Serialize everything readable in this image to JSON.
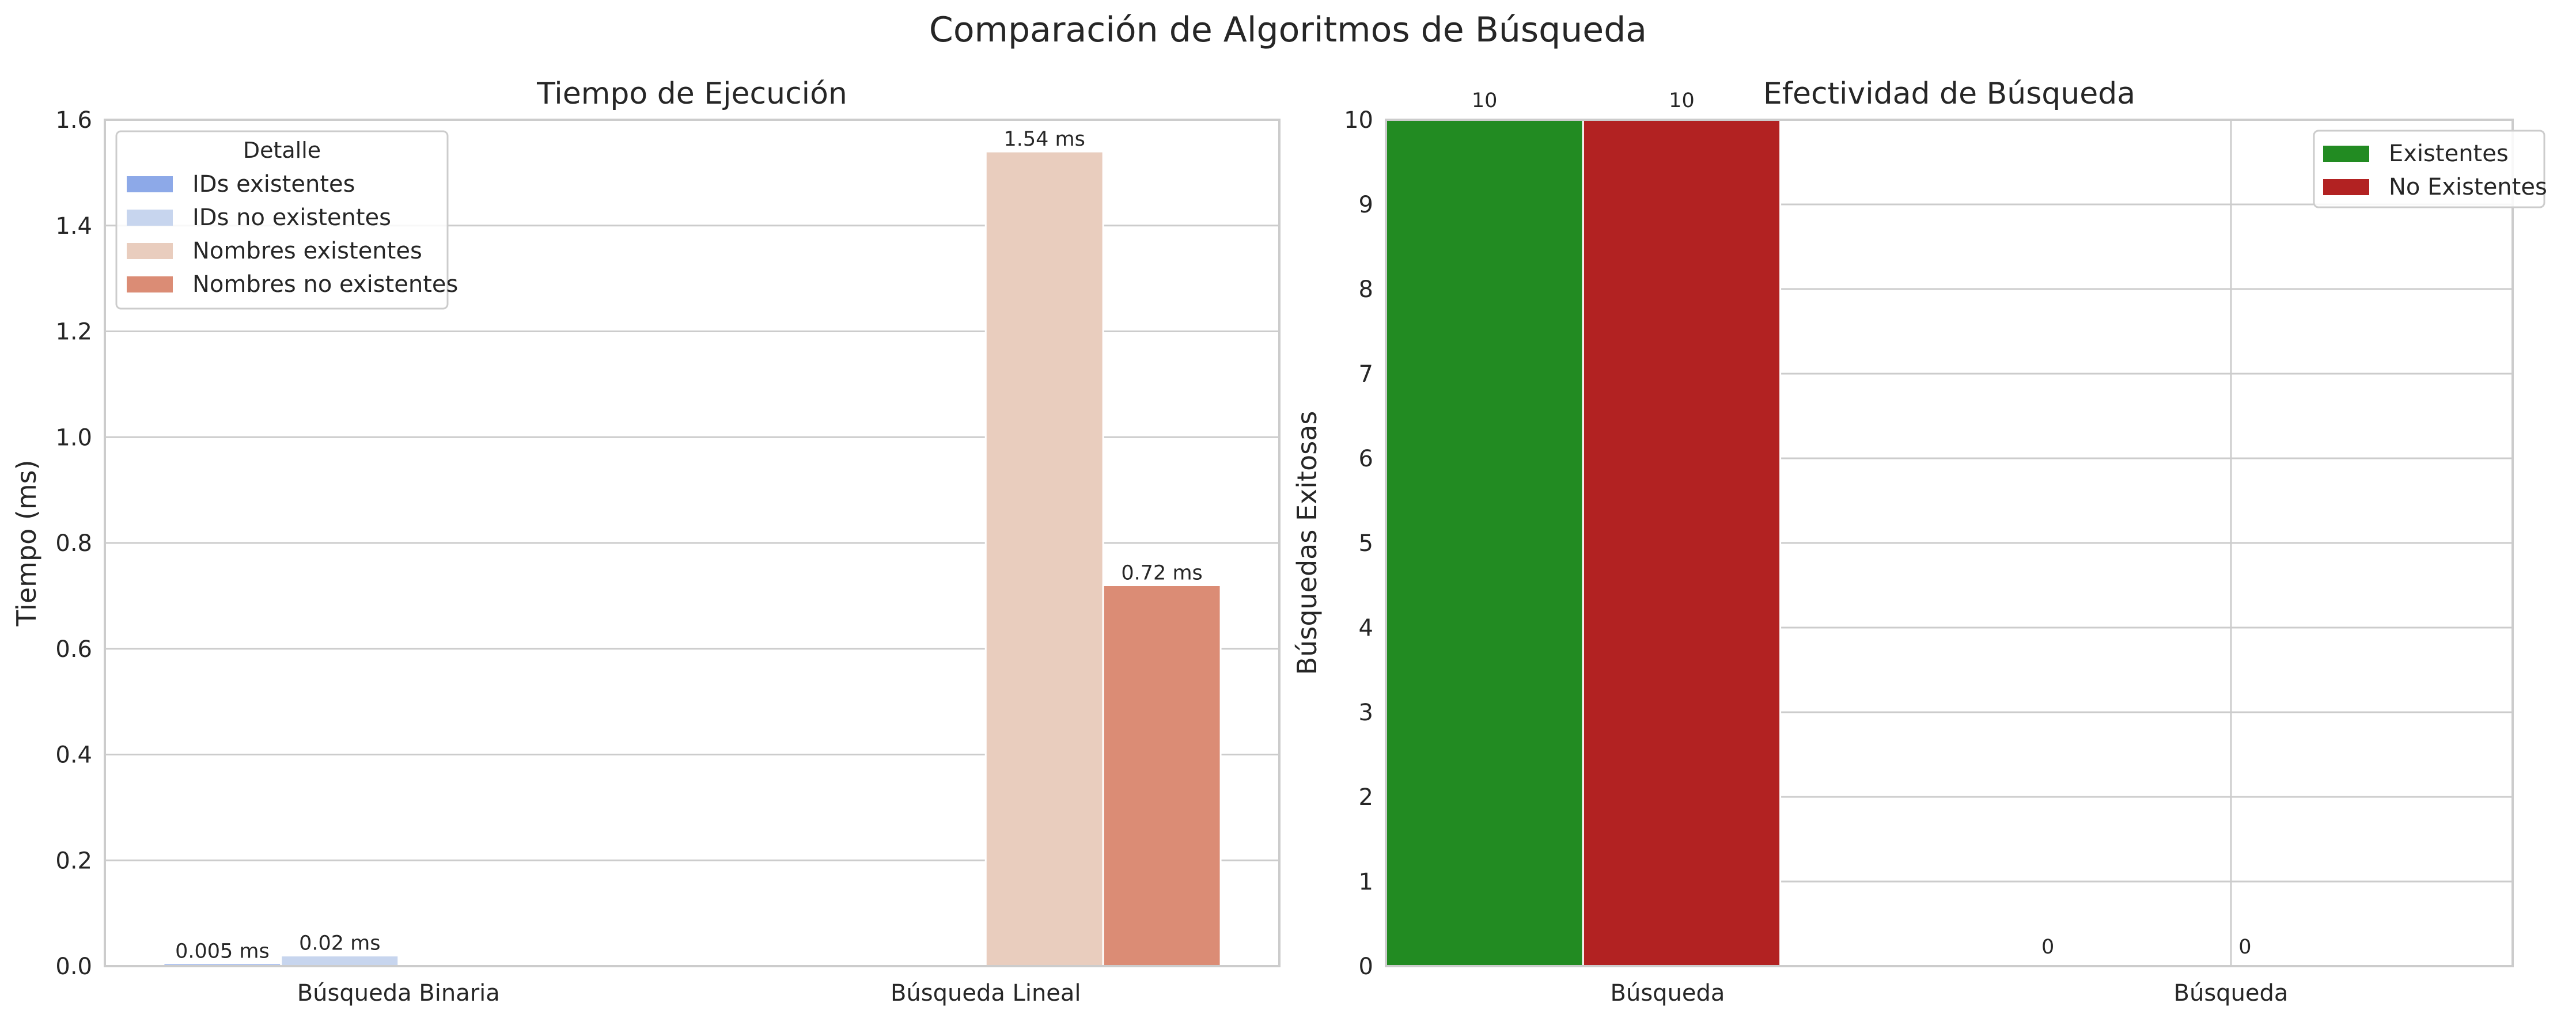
{
  "suptitle": "Comparación de Algoritmos de Búsqueda",
  "chart_data": [
    {
      "type": "bar",
      "title": "Tiempo de Ejecución",
      "xlabel": "",
      "ylabel": "Tiempo (ms)",
      "ylim": [
        0,
        1.6
      ],
      "yticks": [
        "0.0",
        "0.2",
        "0.4",
        "0.6",
        "0.8",
        "1.0",
        "1.2",
        "1.4",
        "1.6"
      ],
      "categories": [
        "Búsqueda Binaria",
        "Búsqueda Lineal"
      ],
      "legend": {
        "title": "Detalle",
        "placement": "upper left"
      },
      "grid": "horizontal",
      "series": [
        {
          "name": "IDs existentes",
          "color": "#8DA9E8",
          "values": [
            0.005,
            null
          ],
          "labels": [
            "0.005 ms",
            ""
          ]
        },
        {
          "name": "IDs no existentes",
          "color": "#C7D5EE",
          "values": [
            0.02,
            null
          ],
          "labels": [
            "0.02 ms",
            ""
          ]
        },
        {
          "name": "Nombres existentes",
          "color": "#E9CDBE",
          "values": [
            null,
            1.54
          ],
          "labels": [
            "",
            "1.54 ms"
          ]
        },
        {
          "name": "Nombres no existentes",
          "color": "#DB8C75",
          "values": [
            null,
            0.72
          ],
          "labels": [
            "",
            "0.72 ms"
          ]
        }
      ]
    },
    {
      "type": "bar",
      "title": "Efectividad de Búsqueda",
      "xlabel": "",
      "ylabel": "Búsquedas Exitosas",
      "ylim": [
        0,
        10
      ],
      "yticks": [
        "0",
        "1",
        "2",
        "3",
        "4",
        "5",
        "6",
        "7",
        "8",
        "9",
        "10"
      ],
      "categories": [
        "Búsqueda",
        "Búsqueda"
      ],
      "legend": {
        "placement": "upper right"
      },
      "grid": "both",
      "series": [
        {
          "name": "Existentes",
          "color": "#228B22",
          "values": [
            10,
            0
          ],
          "labels": [
            "10",
            "0"
          ]
        },
        {
          "name": "No Existentes",
          "color": "#B22222",
          "values": [
            10,
            0
          ],
          "labels": [
            "10",
            "0"
          ]
        }
      ]
    }
  ]
}
